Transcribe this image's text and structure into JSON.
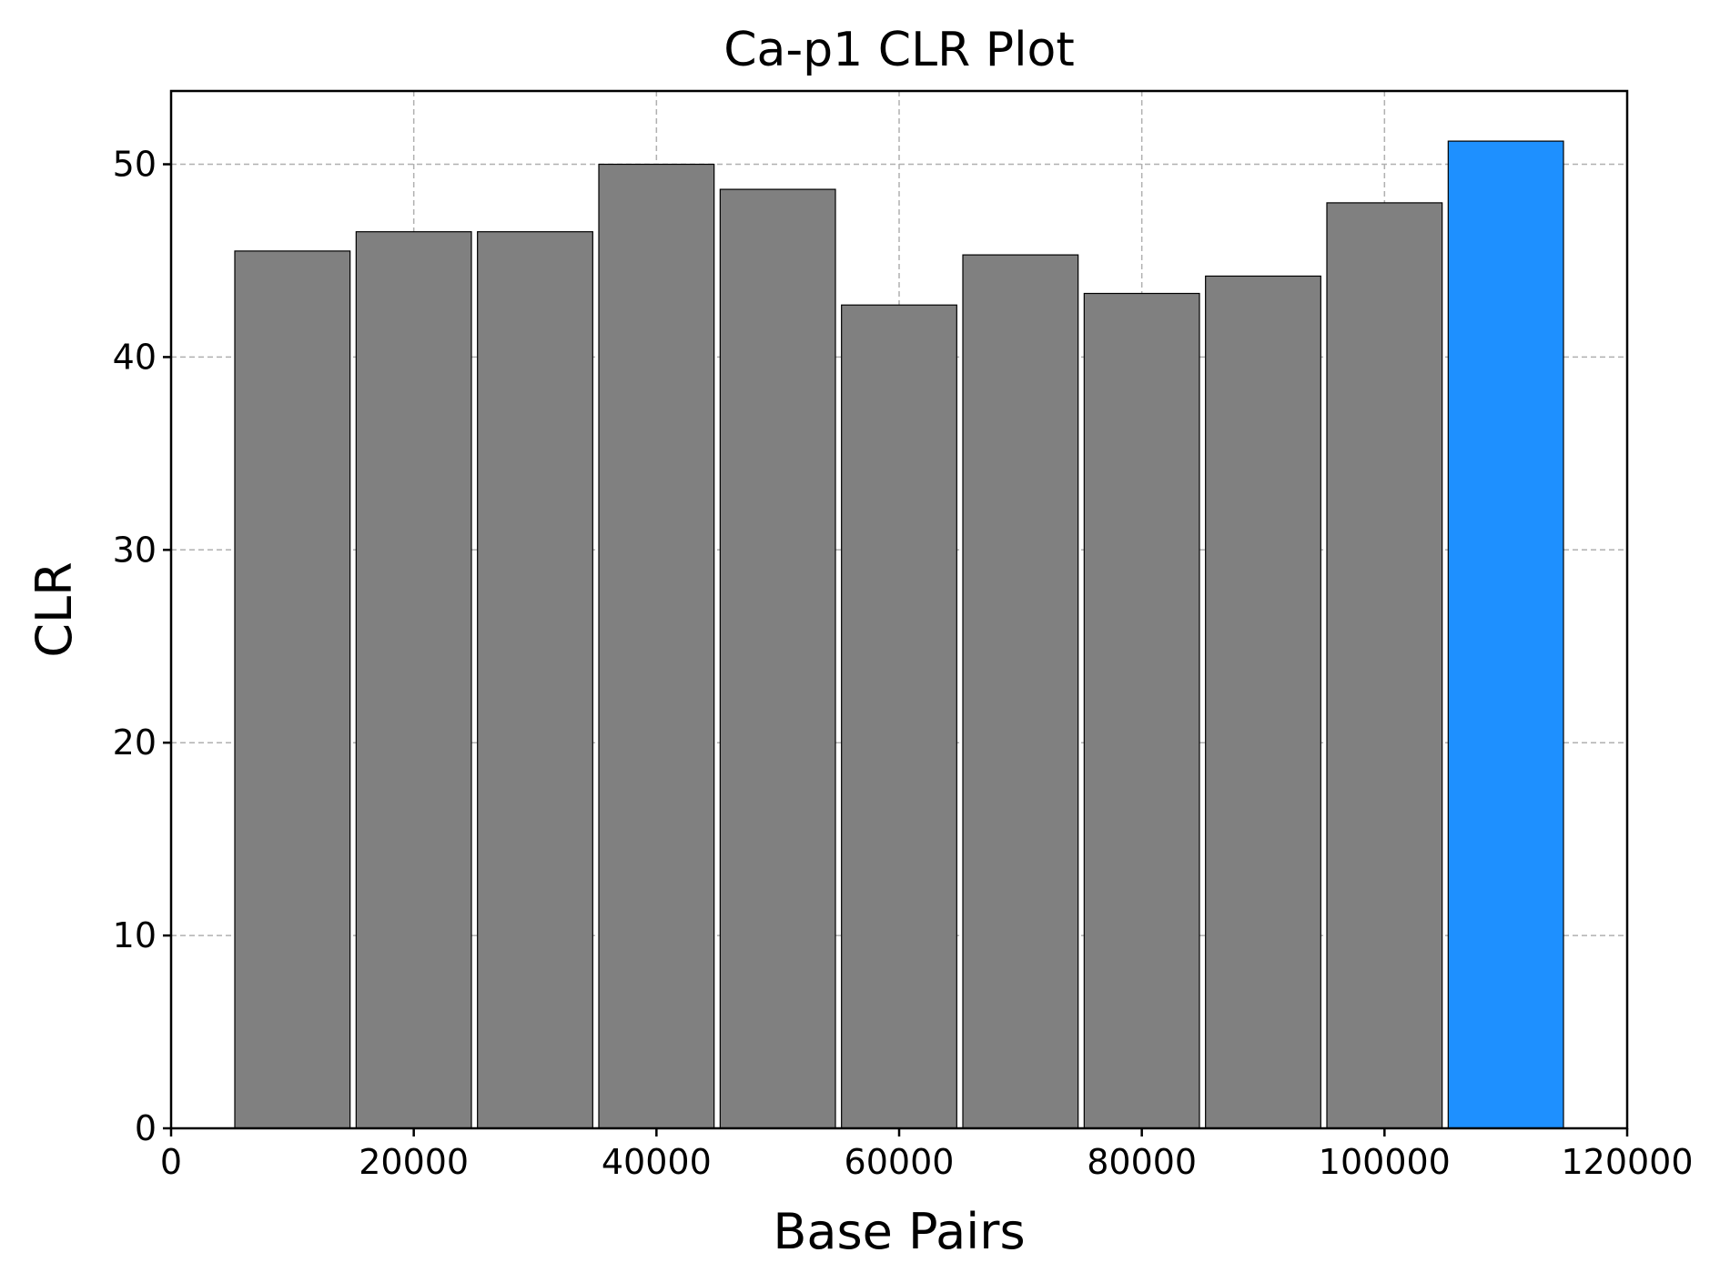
{
  "chart_data": {
    "type": "bar",
    "title": "Ca-p1 CLR Plot",
    "xlabel": "Base Pairs",
    "ylabel": "CLR",
    "xlim": [
      0,
      120000
    ],
    "ylim": [
      0,
      53.8
    ],
    "xticks": [
      0,
      20000,
      40000,
      60000,
      80000,
      100000,
      120000
    ],
    "yticks": [
      0,
      10,
      20,
      30,
      40,
      50
    ],
    "bar_width": 9500,
    "grid": true,
    "default_color": "#808080",
    "highlight_color": "#1e90ff",
    "x": [
      10000,
      20000,
      30000,
      40000,
      50000,
      60000,
      70000,
      80000,
      90000,
      100000,
      110000
    ],
    "values": [
      45.5,
      46.5,
      46.5,
      50.0,
      48.7,
      42.7,
      45.3,
      43.3,
      44.2,
      48.0,
      51.2
    ],
    "highlighted": [
      false,
      false,
      false,
      false,
      false,
      false,
      false,
      false,
      false,
      false,
      true
    ]
  }
}
